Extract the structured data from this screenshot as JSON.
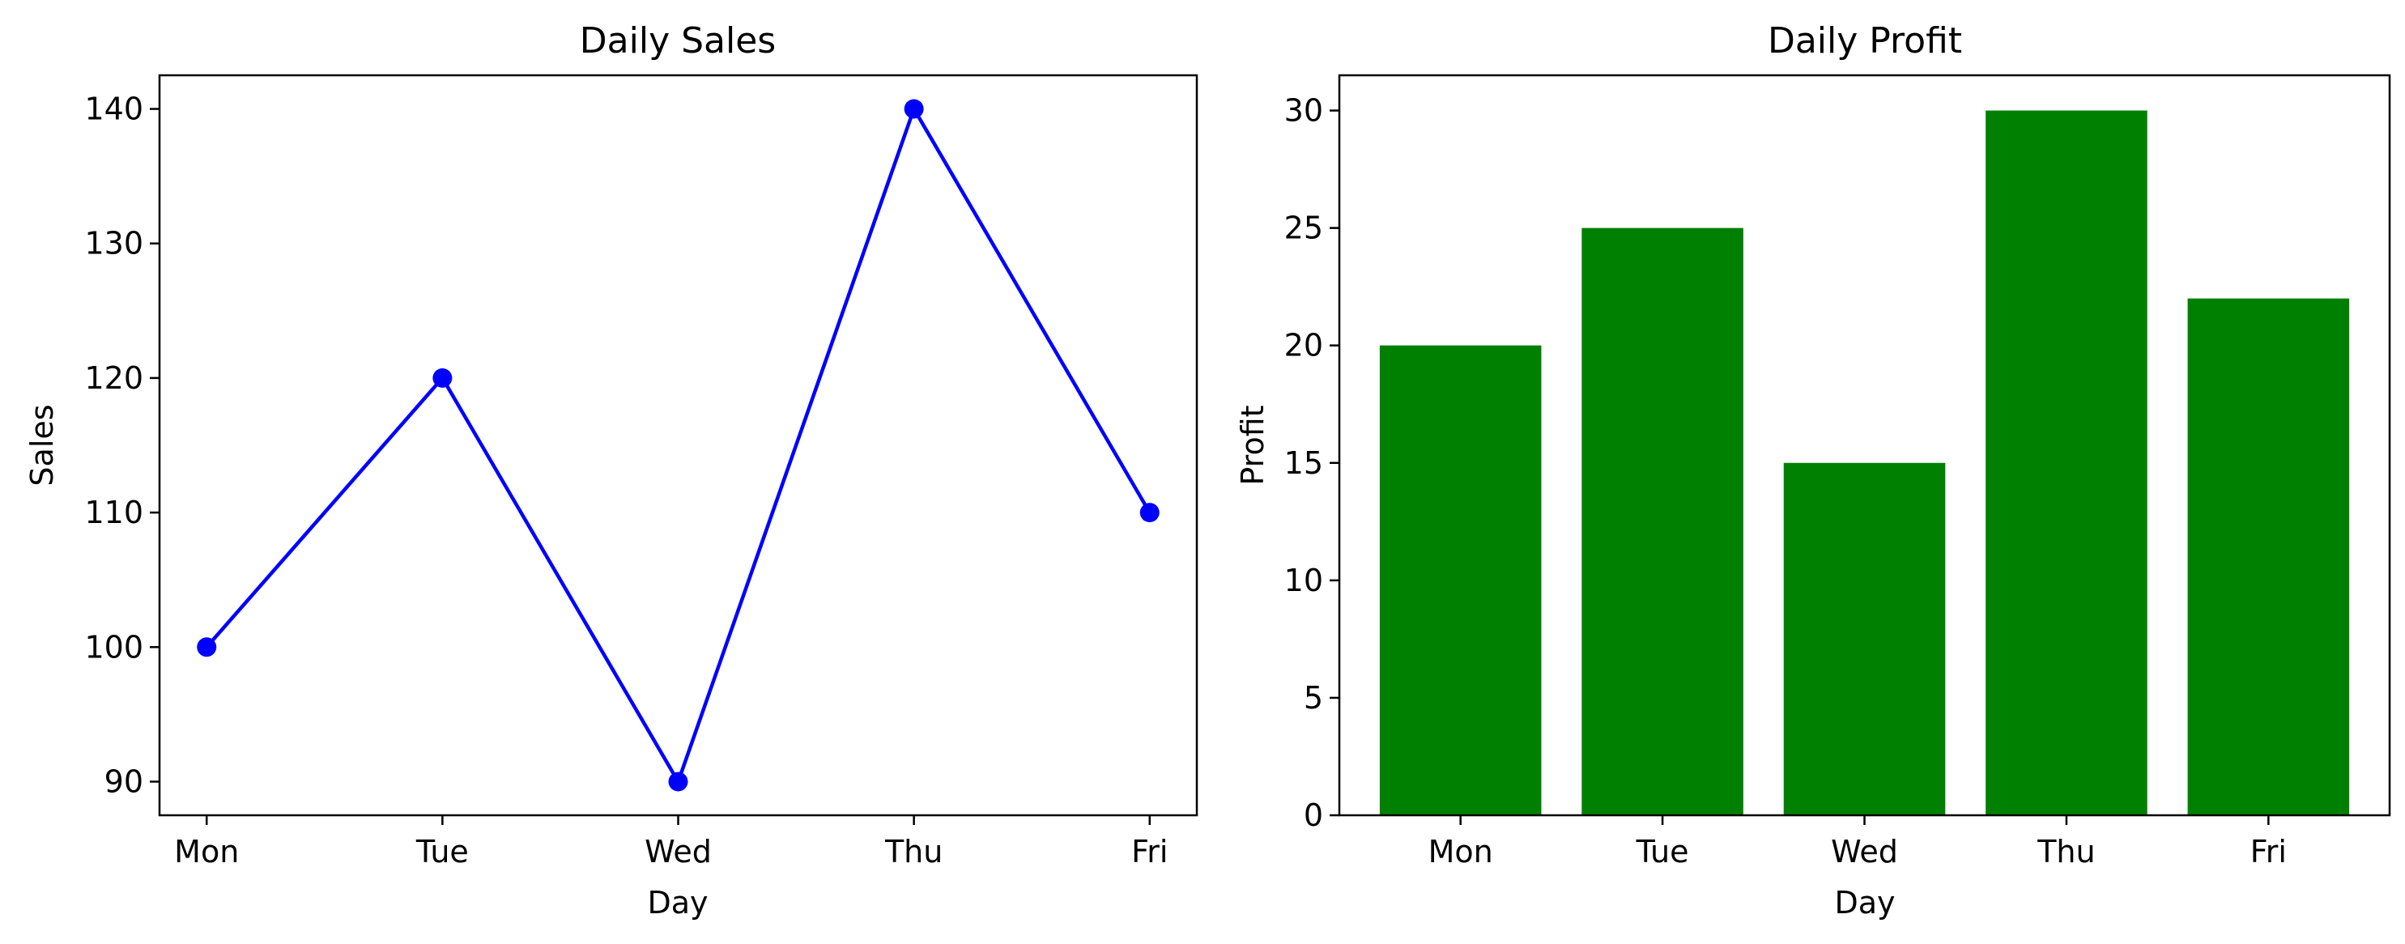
{
  "chart_data": [
    {
      "type": "line",
      "title": "Daily Sales",
      "xlabel": "Day",
      "ylabel": "Sales",
      "categories": [
        "Mon",
        "Tue",
        "Wed",
        "Thu",
        "Fri"
      ],
      "values": [
        100,
        120,
        90,
        140,
        110
      ],
      "yticks": [
        90,
        100,
        110,
        120,
        130,
        140
      ],
      "ylim": [
        87.5,
        142.5
      ],
      "color": "#0000ff",
      "marker": "circle",
      "grid": false
    },
    {
      "type": "bar",
      "title": "Daily Profit",
      "xlabel": "Day",
      "ylabel": "Profit",
      "categories": [
        "Mon",
        "Tue",
        "Wed",
        "Thu",
        "Fri"
      ],
      "values": [
        20,
        25,
        15,
        30,
        22
      ],
      "yticks": [
        0,
        5,
        10,
        15,
        20,
        25,
        30
      ],
      "ylim": [
        0,
        31.5
      ],
      "color": "#008000",
      "grid": false
    }
  ]
}
